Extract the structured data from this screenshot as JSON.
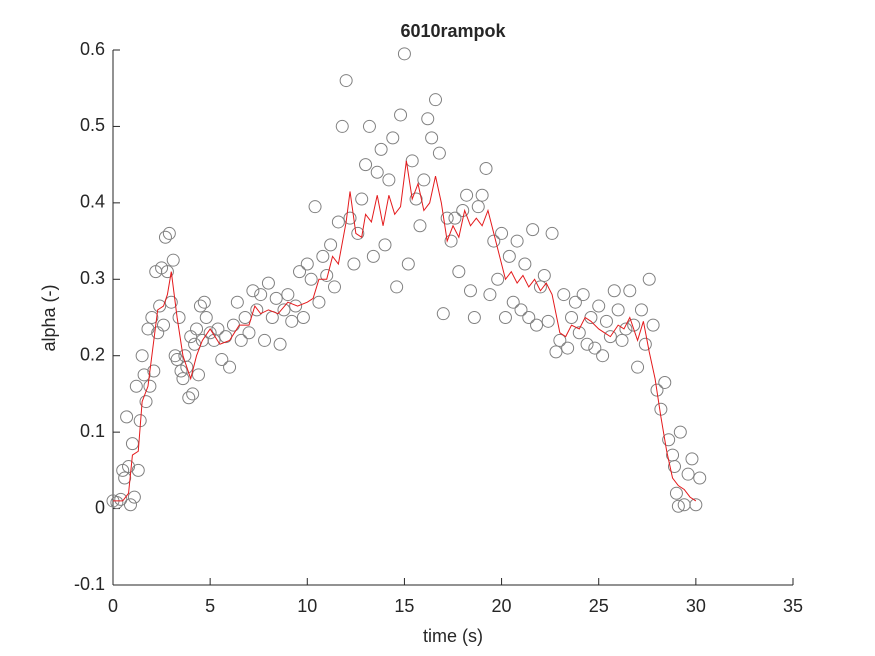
{
  "chart_data": {
    "type": "scatter",
    "title": "6010rampok",
    "xlabel": "time (s)",
    "ylabel": "alpha (-)",
    "xlim": [
      0,
      35
    ],
    "xticks": [
      0,
      5,
      10,
      15,
      20,
      25,
      30,
      35
    ],
    "ylim": [
      -0.1,
      0.6
    ],
    "yticks": [
      -0.1,
      0,
      0.1,
      0.2,
      0.3,
      0.4,
      0.5,
      0.6
    ],
    "series": [
      {
        "style": "markers",
        "color": "#808080",
        "x": [
          0,
          0.2,
          0.4,
          0.5,
          0.6,
          0.7,
          0.8,
          0.9,
          1.0,
          1.1,
          1.2,
          1.3,
          1.4,
          1.5,
          1.6,
          1.7,
          1.8,
          1.9,
          2.0,
          2.1,
          2.2,
          2.3,
          2.4,
          2.5,
          2.6,
          2.7,
          2.8,
          2.9,
          3.0,
          3.1,
          3.2,
          3.3,
          3.4,
          3.5,
          3.6,
          3.7,
          3.8,
          3.9,
          4.0,
          4.1,
          4.2,
          4.3,
          4.4,
          4.5,
          4.6,
          4.7,
          4.8,
          5.0,
          5.2,
          5.4,
          5.6,
          5.8,
          6.0,
          6.2,
          6.4,
          6.6,
          6.8,
          7.0,
          7.2,
          7.4,
          7.6,
          7.8,
          8.0,
          8.2,
          8.4,
          8.6,
          8.8,
          9.0,
          9.2,
          9.4,
          9.6,
          9.8,
          10.0,
          10.2,
          10.4,
          10.6,
          10.8,
          11.0,
          11.2,
          11.4,
          11.6,
          11.8,
          12.0,
          12.2,
          12.4,
          12.6,
          12.8,
          13.0,
          13.2,
          13.4,
          13.6,
          13.8,
          14.0,
          14.2,
          14.4,
          14.6,
          14.8,
          15.0,
          15.2,
          15.4,
          15.6,
          15.8,
          16.0,
          16.2,
          16.4,
          16.6,
          16.8,
          17.0,
          17.2,
          17.4,
          17.6,
          17.8,
          18.0,
          18.2,
          18.4,
          18.6,
          18.8,
          19.0,
          19.2,
          19.4,
          19.6,
          19.8,
          20.0,
          20.2,
          20.4,
          20.6,
          20.8,
          21.0,
          21.2,
          21.4,
          21.6,
          21.8,
          22.0,
          22.2,
          22.4,
          22.6,
          22.8,
          23.0,
          23.2,
          23.4,
          23.6,
          23.8,
          24.0,
          24.2,
          24.4,
          24.6,
          24.8,
          25.0,
          25.2,
          25.4,
          25.6,
          25.8,
          26.0,
          26.2,
          26.4,
          26.6,
          26.8,
          27.0,
          27.2,
          27.4,
          27.6,
          27.8,
          28.0,
          28.2,
          28.4,
          28.6,
          28.8,
          28.9,
          29.0,
          29.1,
          29.2,
          29.4,
          29.6,
          29.8,
          30.0,
          30.2
        ],
        "values": [
          0.01,
          0.008,
          0.012,
          0.05,
          0.04,
          0.12,
          0.055,
          0.005,
          0.085,
          0.015,
          0.16,
          0.05,
          0.115,
          0.2,
          0.175,
          0.14,
          0.235,
          0.16,
          0.25,
          0.18,
          0.31,
          0.23,
          0.265,
          0.315,
          0.24,
          0.355,
          0.31,
          0.36,
          0.27,
          0.325,
          0.2,
          0.195,
          0.25,
          0.18,
          0.17,
          0.2,
          0.185,
          0.145,
          0.225,
          0.15,
          0.215,
          0.235,
          0.175,
          0.265,
          0.22,
          0.27,
          0.25,
          0.23,
          0.22,
          0.235,
          0.195,
          0.225,
          0.185,
          0.24,
          0.27,
          0.22,
          0.25,
          0.23,
          0.285,
          0.26,
          0.28,
          0.22,
          0.295,
          0.25,
          0.275,
          0.215,
          0.26,
          0.28,
          0.245,
          0.265,
          0.31,
          0.25,
          0.32,
          0.3,
          0.395,
          0.27,
          0.33,
          0.305,
          0.345,
          0.29,
          0.375,
          0.5,
          0.56,
          0.38,
          0.32,
          0.36,
          0.405,
          0.45,
          0.5,
          0.33,
          0.44,
          0.47,
          0.345,
          0.43,
          0.485,
          0.29,
          0.515,
          0.595,
          0.32,
          0.455,
          0.405,
          0.37,
          0.43,
          0.51,
          0.485,
          0.535,
          0.465,
          0.255,
          0.38,
          0.35,
          0.38,
          0.31,
          0.39,
          0.41,
          0.285,
          0.25,
          0.395,
          0.41,
          0.445,
          0.28,
          0.35,
          0.3,
          0.36,
          0.25,
          0.33,
          0.27,
          0.35,
          0.26,
          0.32,
          0.25,
          0.365,
          0.24,
          0.29,
          0.305,
          0.245,
          0.36,
          0.205,
          0.22,
          0.28,
          0.21,
          0.25,
          0.27,
          0.23,
          0.28,
          0.215,
          0.25,
          0.21,
          0.265,
          0.2,
          0.245,
          0.225,
          0.285,
          0.26,
          0.22,
          0.235,
          0.285,
          0.24,
          0.185,
          0.26,
          0.215,
          0.3,
          0.24,
          0.155,
          0.13,
          0.165,
          0.09,
          0.07,
          0.055,
          0.02,
          0.003,
          0.1,
          0.005,
          0.045,
          0.065,
          0.005,
          0.04
        ]
      },
      {
        "style": "line",
        "color": "#e41a1c",
        "x": [
          0,
          0.5,
          0.8,
          1.0,
          1.3,
          1.5,
          1.8,
          2.0,
          2.3,
          2.6,
          2.8,
          3.0,
          3.3,
          3.6,
          4.0,
          4.3,
          4.6,
          5.0,
          5.5,
          6.0,
          6.5,
          7.0,
          7.3,
          7.6,
          8.0,
          8.5,
          9.0,
          9.5,
          10.0,
          10.3,
          10.6,
          11.0,
          11.3,
          11.6,
          12.0,
          12.2,
          12.5,
          12.8,
          13.0,
          13.3,
          13.6,
          13.9,
          14.2,
          14.5,
          14.8,
          15.1,
          15.4,
          15.7,
          16.0,
          16.3,
          16.6,
          16.9,
          17.2,
          17.5,
          17.8,
          18.1,
          18.4,
          18.7,
          19.0,
          19.3,
          19.6,
          19.9,
          20.2,
          20.5,
          20.8,
          21.1,
          21.4,
          21.7,
          22.0,
          22.3,
          22.6,
          23.0,
          23.3,
          23.6,
          24.0,
          24.3,
          24.6,
          25.0,
          25.3,
          25.6,
          26.0,
          26.3,
          26.6,
          27.0,
          27.3,
          27.6,
          27.9,
          28.2,
          28.5,
          28.8,
          29.1,
          29.4,
          29.7,
          30.0
        ],
        "values": [
          0.01,
          0.01,
          0.02,
          0.07,
          0.075,
          0.14,
          0.16,
          0.2,
          0.26,
          0.265,
          0.28,
          0.31,
          0.25,
          0.2,
          0.17,
          0.2,
          0.22,
          0.235,
          0.215,
          0.22,
          0.24,
          0.24,
          0.265,
          0.255,
          0.26,
          0.255,
          0.27,
          0.265,
          0.27,
          0.275,
          0.3,
          0.3,
          0.33,
          0.32,
          0.375,
          0.415,
          0.36,
          0.355,
          0.385,
          0.375,
          0.41,
          0.37,
          0.41,
          0.385,
          0.395,
          0.455,
          0.405,
          0.425,
          0.39,
          0.4,
          0.435,
          0.4,
          0.35,
          0.37,
          0.355,
          0.39,
          0.37,
          0.38,
          0.37,
          0.39,
          0.36,
          0.33,
          0.3,
          0.31,
          0.295,
          0.305,
          0.29,
          0.3,
          0.285,
          0.295,
          0.28,
          0.23,
          0.225,
          0.24,
          0.235,
          0.25,
          0.245,
          0.235,
          0.23,
          0.225,
          0.24,
          0.235,
          0.25,
          0.22,
          0.245,
          0.205,
          0.17,
          0.12,
          0.075,
          0.04,
          0.03,
          0.025,
          0.015,
          0.01
        ]
      }
    ]
  }
}
